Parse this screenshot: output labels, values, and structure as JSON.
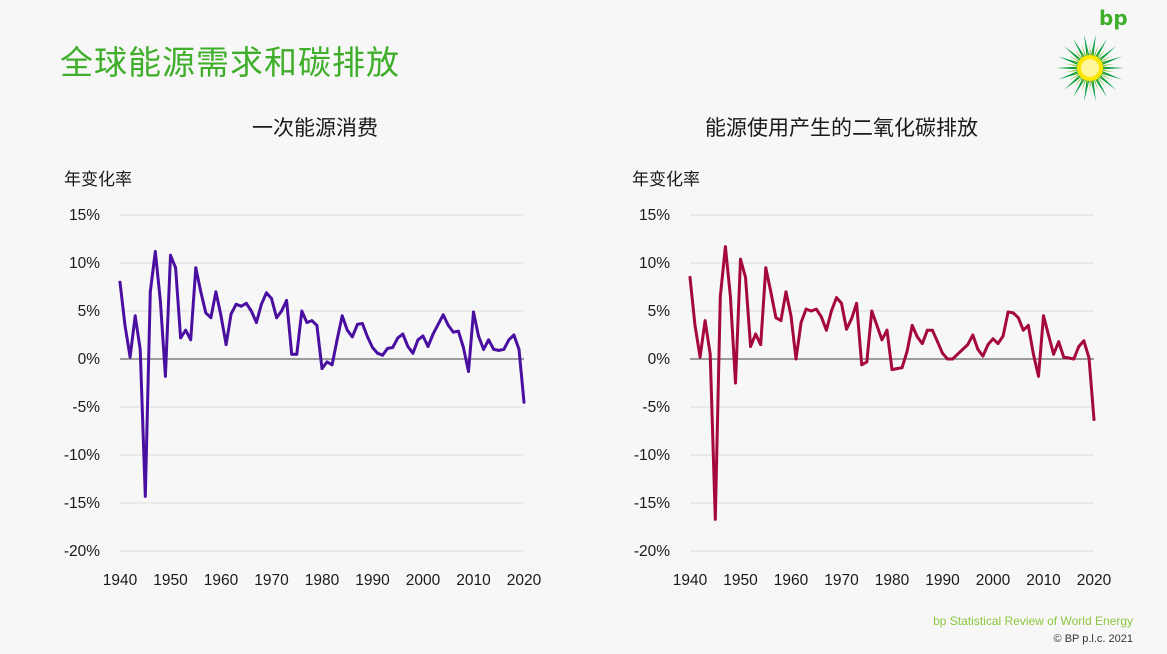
{
  "slide": {
    "title": "全球能源需求和碳排放",
    "logo_text": "bp",
    "footer_source": "bp Statistical Review of World Energy",
    "footer_copyright": "© BP p.l.c. 2021"
  },
  "colors": {
    "title_green": "#3fae2a",
    "energy_line": "#4a0fa0",
    "co2_line": "#a5083a",
    "grid": "#dddddd",
    "zero_line": "#666666"
  },
  "chart_data": [
    {
      "type": "line",
      "title": "一次能源消费",
      "ylabel": "年变化率",
      "xlim": [
        1940,
        2020
      ],
      "ylim": [
        -20,
        15
      ],
      "x_ticks": [
        "1940",
        "1950",
        "1960",
        "1970",
        "1980",
        "1990",
        "2000",
        "2010",
        "2020"
      ],
      "y_ticks": [
        "15%",
        "10%",
        "5%",
        "0%",
        "-5%",
        "-10%",
        "-15%",
        "-20%"
      ],
      "grid": true,
      "series": [
        {
          "color": "#4a0fa0",
          "x": [
            1940,
            1941,
            1942,
            1943,
            1944,
            1945,
            1946,
            1947,
            1948,
            1949,
            1950,
            1951,
            1952,
            1953,
            1954,
            1955,
            1956,
            1957,
            1958,
            1959,
            1960,
            1961,
            1962,
            1963,
            1964,
            1965,
            1966,
            1967,
            1968,
            1969,
            1970,
            1971,
            1972,
            1973,
            1974,
            1975,
            1976,
            1977,
            1978,
            1979,
            1980,
            1981,
            1982,
            1983,
            1984,
            1985,
            1986,
            1987,
            1988,
            1989,
            1990,
            1991,
            1992,
            1993,
            1994,
            1995,
            1996,
            1997,
            1998,
            1999,
            2000,
            2001,
            2002,
            2003,
            2004,
            2005,
            2006,
            2007,
            2008,
            2009,
            2010,
            2011,
            2012,
            2013,
            2014,
            2015,
            2016,
            2017,
            2018,
            2019,
            2020
          ],
          "values": [
            8.0,
            3.5,
            0.2,
            4.5,
            1.0,
            -14.3,
            7.0,
            11.2,
            6.0,
            -1.8,
            10.8,
            9.5,
            2.2,
            3.0,
            2.0,
            9.5,
            7.0,
            4.8,
            4.3,
            7.0,
            4.5,
            1.5,
            4.7,
            5.7,
            5.5,
            5.8,
            5.0,
            3.8,
            5.7,
            6.9,
            6.3,
            4.3,
            5.0,
            6.1,
            0.5,
            0.5,
            5.0,
            3.8,
            4.0,
            3.5,
            -1.0,
            -0.3,
            -0.6,
            2.0,
            4.5,
            3.0,
            2.3,
            3.6,
            3.7,
            2.3,
            1.2,
            0.6,
            0.4,
            1.1,
            1.2,
            2.2,
            2.6,
            1.3,
            0.6,
            2.0,
            2.4,
            1.3,
            2.6,
            3.6,
            4.6,
            3.5,
            2.8,
            2.9,
            1.2,
            -1.3,
            4.9,
            2.4,
            1.0,
            2.0,
            1.0,
            0.9,
            1.0,
            2.0,
            2.5,
            1.0,
            -4.5
          ]
        }
      ]
    },
    {
      "type": "line",
      "title": "能源使用产生的二氧化碳排放",
      "ylabel": "年变化率",
      "xlim": [
        1940,
        2020
      ],
      "ylim": [
        -20,
        15
      ],
      "x_ticks": [
        "1940",
        "1950",
        "1960",
        "1970",
        "1980",
        "1990",
        "2000",
        "2010",
        "2020"
      ],
      "y_ticks": [
        "15%",
        "10%",
        "5%",
        "0%",
        "-5%",
        "-10%",
        "-15%",
        "-20%"
      ],
      "grid": true,
      "series": [
        {
          "color": "#a5083a",
          "x": [
            1940,
            1941,
            1942,
            1943,
            1944,
            1945,
            1946,
            1947,
            1948,
            1949,
            1950,
            1951,
            1952,
            1953,
            1954,
            1955,
            1956,
            1957,
            1958,
            1959,
            1960,
            1961,
            1962,
            1963,
            1964,
            1965,
            1966,
            1967,
            1968,
            1969,
            1970,
            1971,
            1972,
            1973,
            1974,
            1975,
            1976,
            1977,
            1978,
            1979,
            1980,
            1981,
            1982,
            1983,
            1984,
            1985,
            1986,
            1987,
            1988,
            1989,
            1990,
            1991,
            1992,
            1993,
            1994,
            1995,
            1996,
            1997,
            1998,
            1999,
            2000,
            2001,
            2002,
            2003,
            2004,
            2005,
            2006,
            2007,
            2008,
            2009,
            2010,
            2011,
            2012,
            2013,
            2014,
            2015,
            2016,
            2017,
            2018,
            2019,
            2020
          ],
          "values": [
            8.5,
            3.5,
            0.2,
            4.0,
            0.5,
            -16.7,
            6.5,
            11.7,
            6.5,
            -2.5,
            10.4,
            8.5,
            1.3,
            2.6,
            1.5,
            9.5,
            7.0,
            4.3,
            4.0,
            7.0,
            4.5,
            0.0,
            3.8,
            5.2,
            5.0,
            5.2,
            4.4,
            3.0,
            5.0,
            6.4,
            5.8,
            3.1,
            4.2,
            5.8,
            -0.6,
            -0.3,
            5.0,
            3.5,
            2.0,
            3.0,
            -1.1,
            -1.0,
            -0.9,
            0.8,
            3.5,
            2.3,
            1.6,
            3.0,
            3.0,
            1.8,
            0.6,
            0.0,
            0.0,
            0.5,
            1.0,
            1.5,
            2.5,
            1.0,
            0.3,
            1.5,
            2.1,
            1.6,
            2.4,
            4.9,
            4.8,
            4.3,
            3.0,
            3.5,
            0.5,
            -1.8,
            4.5,
            2.5,
            0.5,
            1.8,
            0.2,
            0.1,
            0.0,
            1.3,
            1.9,
            0.1,
            -6.3
          ]
        }
      ]
    }
  ]
}
